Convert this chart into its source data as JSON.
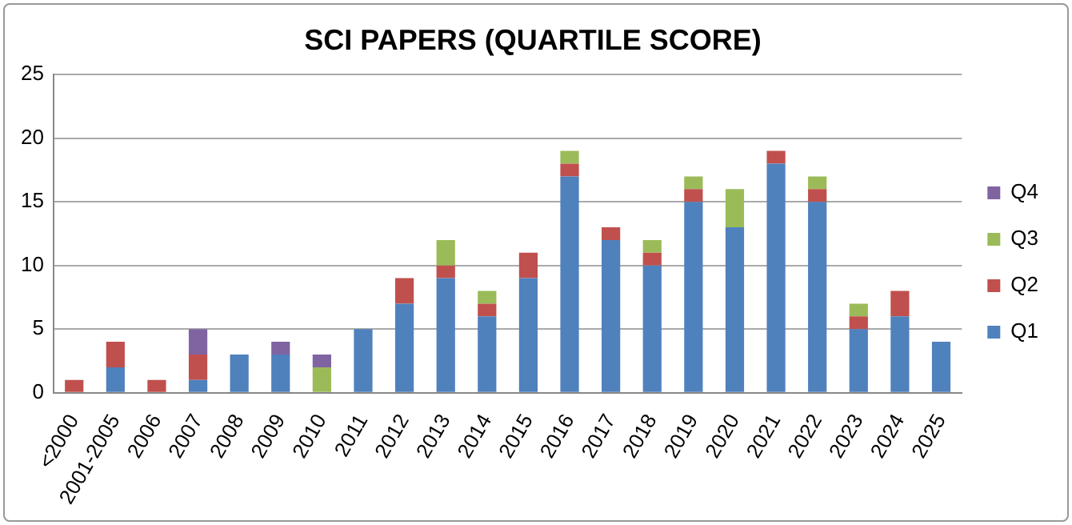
{
  "chart_data": {
    "type": "bar",
    "title": "SCI PAPERS (QUARTILE SCORE)",
    "stacked": true,
    "grid": "y",
    "legend": "right",
    "categories": [
      "<2000",
      "2001-2005",
      "2006",
      "2007",
      "2008",
      "2009",
      "2010",
      "2011",
      "2012",
      "2013",
      "2014",
      "2015",
      "2016",
      "2017",
      "2018",
      "2019",
      "2020",
      "2021",
      "2022",
      "2023",
      "2024",
      "2025"
    ],
    "ylim": [
      0,
      25
    ],
    "yticks": [
      0,
      5,
      10,
      15,
      20,
      25
    ],
    "series": [
      {
        "name": "Q1",
        "color": "#4f81bd",
        "values": [
          0,
          2,
          0,
          1,
          3,
          3,
          0,
          5,
          7,
          9,
          6,
          9,
          17,
          12,
          10,
          15,
          13,
          18,
          15,
          5,
          6,
          4
        ]
      },
      {
        "name": "Q2",
        "color": "#c0504d",
        "values": [
          1,
          2,
          1,
          2,
          0,
          0,
          0,
          0,
          2,
          1,
          1,
          2,
          1,
          1,
          1,
          1,
          0,
          1,
          1,
          1,
          2,
          0
        ]
      },
      {
        "name": "Q3",
        "color": "#9bbb59",
        "values": [
          0,
          0,
          0,
          0,
          0,
          0,
          2,
          0,
          0,
          2,
          1,
          0,
          1,
          0,
          1,
          1,
          3,
          0,
          1,
          1,
          0,
          0
        ]
      },
      {
        "name": "Q4",
        "color": "#8064a2",
        "values": [
          0,
          0,
          0,
          2,
          0,
          1,
          1,
          0,
          0,
          0,
          0,
          0,
          0,
          0,
          0,
          0,
          0,
          0,
          0,
          0,
          0,
          0
        ]
      }
    ]
  }
}
